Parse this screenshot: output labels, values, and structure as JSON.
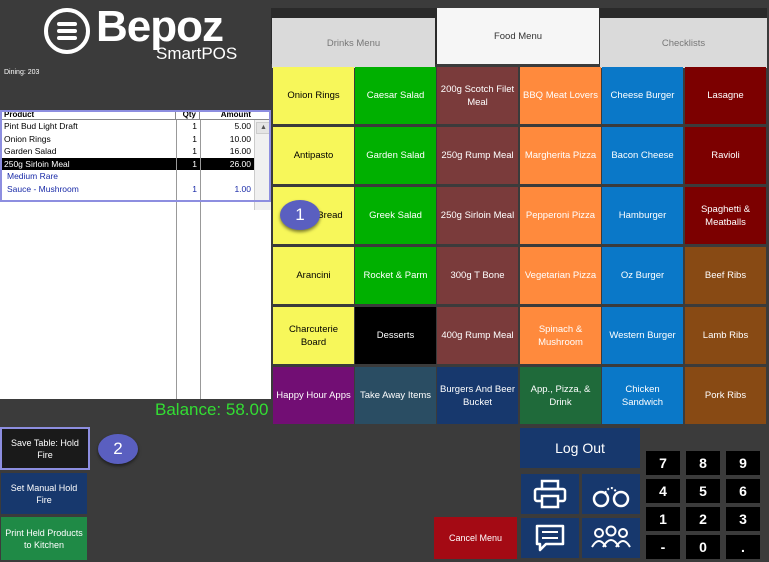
{
  "logo": {
    "word": "Bepoz",
    "sub": "SmartPOS"
  },
  "dining_label": "Dining: 203",
  "order": {
    "headers": {
      "product": "Product",
      "qty": "Qty",
      "amount": "Amount"
    },
    "rows": [
      {
        "product": "Pint Bud Light Draft",
        "qty": "1",
        "amount": "5.00"
      },
      {
        "product": "Onion Rings",
        "qty": "1",
        "amount": "10.00"
      },
      {
        "product": "Garden Salad",
        "qty": "1",
        "amount": "16.00"
      },
      {
        "product": "250g Sirloin Meal",
        "qty": "1",
        "amount": "26.00"
      },
      {
        "product": "Medium Rare",
        "qty": "",
        "amount": ""
      },
      {
        "product": "Sauce - Mushroom",
        "qty": "1",
        "amount": "1.00"
      }
    ],
    "scroll_up": "▲"
  },
  "balance": "Balance: 58.00",
  "callouts": {
    "one": "1",
    "two": "2"
  },
  "left_buttons": {
    "save_table": "Save Table: Hold Fire",
    "manual_hold": "Set Manual Hold Fire",
    "print_held": "Print Held Products to Kitchen"
  },
  "tabs": {
    "drinks": "Drinks Menu",
    "food": "Food Menu",
    "checklists": "Checklists"
  },
  "menu": {
    "col1": [
      "Onion Rings",
      "Antipasto",
      "Bread",
      "Arancini",
      "Charcuterie Board",
      "Happy Hour Apps"
    ],
    "col2": [
      "Caesar Salad",
      "Garden Salad",
      "Greek Salad",
      "Rocket & Parm",
      "Desserts",
      "Take Away Items"
    ],
    "col3": [
      "200g Scotch Filet Meal",
      "250g Rump Meal",
      "250g Sirloin Meal",
      "300g T Bone",
      "400g Rump Meal",
      "Burgers And Beer Bucket"
    ],
    "col4": [
      "BBQ Meat Lovers",
      "Margherita Pizza",
      "Pepperoni Pizza",
      "Vegetarian Pizza",
      "Spinach & Mushroom",
      "App., Pizza, & Drink"
    ],
    "col5": [
      "Cheese Burger",
      "Bacon Cheese",
      "Hamburger",
      "Oz Burger",
      "Western Burger",
      "Chicken Sandwich"
    ],
    "col6": [
      "Lasagne",
      "Ravioli",
      "Spaghetti & Meatballs",
      "Beef Ribs",
      "Lamb Ribs",
      "Pork Ribs"
    ]
  },
  "bottom": {
    "logout": "Log Out",
    "cancel": "Cancel Menu"
  },
  "keypad": [
    "7",
    "8",
    "9",
    "4",
    "5",
    "6",
    "1",
    "2",
    "3",
    "-",
    "0",
    "."
  ],
  "colors": {
    "yellow": "#f7f75a",
    "green": "#00b000",
    "maroon": "#7a3b3b",
    "orange": "#ff8a3d",
    "blue": "#0a78c8",
    "darkred": "#7c0000",
    "brown": "#884a14",
    "purple": "#720e74",
    "navy": "#17386d",
    "teal": "#2a4d63",
    "dkgreen": "#1f6a3a",
    "cancel": "#a40a14"
  }
}
